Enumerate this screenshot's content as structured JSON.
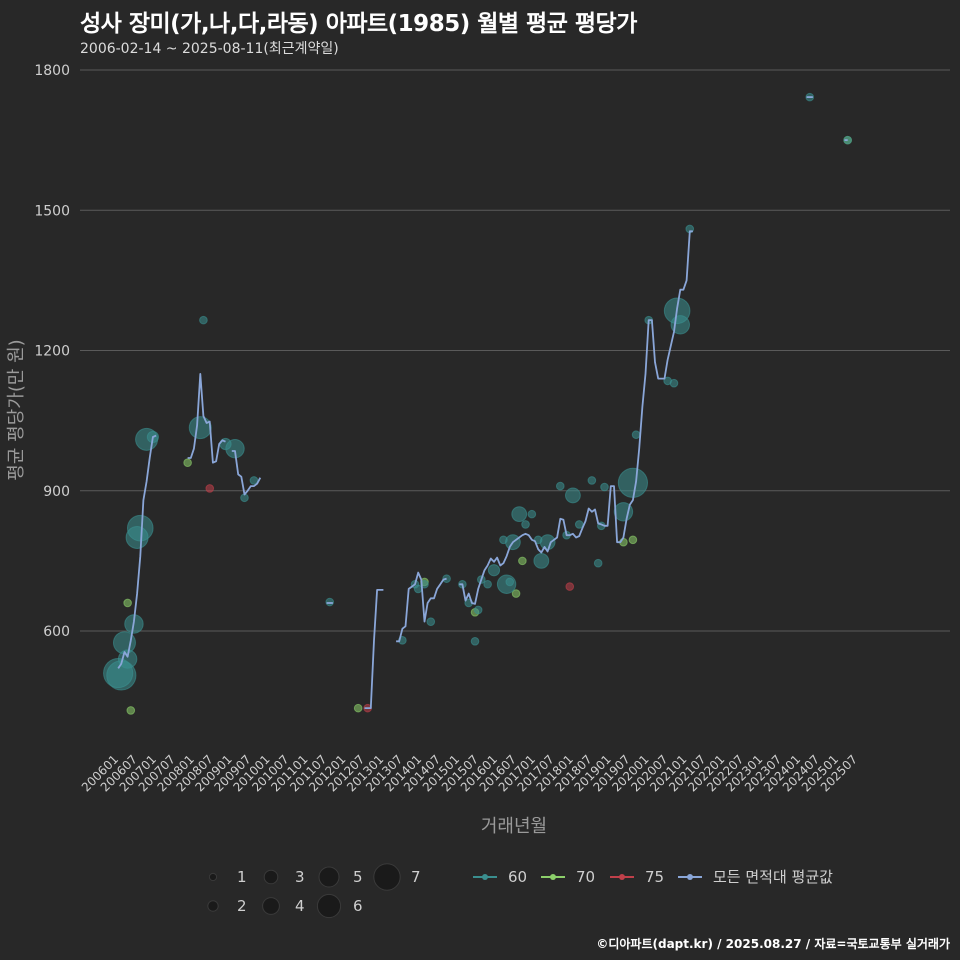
{
  "title": "성사 장미(가,나,다,라동) 아파트(1985) 월별 평균 평당가",
  "subtitle": "2006-02-14 ~ 2025-08-11(최근계약일)",
  "footer": "©디아파트(dapt.kr) / 2025.08.27 / 자료=국토교통부 실거래가",
  "colors": {
    "background": "#282828",
    "grid": "#5a5a5a",
    "s60": "#3a8f8f",
    "s70": "#8ccf6a",
    "s75": "#c0404a",
    "avg": "#8aa6d8"
  },
  "chart_data": {
    "type": "line",
    "title": "성사 장미(가,나,다,라동) 아파트(1985) 월별 평균 평당가",
    "xlabel": "거래년월",
    "ylabel": "평균 평당가(만 원)",
    "ylim": [
      370,
      1800
    ],
    "yticks": [
      600,
      900,
      1200,
      1500,
      1800
    ],
    "xticks": [
      "200601",
      "200607",
      "200701",
      "200707",
      "200801",
      "200807",
      "200901",
      "200907",
      "201001",
      "201007",
      "201101",
      "201107",
      "201201",
      "201207",
      "201301",
      "201307",
      "201401",
      "201407",
      "201501",
      "201507",
      "201601",
      "201607",
      "201701",
      "201707",
      "201801",
      "201807",
      "201901",
      "201907",
      "202001",
      "202007",
      "202101",
      "202107",
      "202201",
      "202207",
      "202301",
      "202307",
      "202401",
      "202407",
      "202501",
      "202507"
    ],
    "x_index_note": "x = months since 2006-01",
    "size_legend": [
      "1",
      "2",
      "3",
      "4",
      "5",
      "6",
      "7"
    ],
    "series_legend": [
      "60",
      "70",
      "75",
      "모든 면적대 평균값"
    ],
    "avg_segments": [
      [
        [
          2,
          520
        ],
        [
          3,
          530
        ],
        [
          4,
          555
        ],
        [
          5,
          545
        ],
        [
          6,
          580
        ],
        [
          7,
          620
        ],
        [
          8,
          680
        ],
        [
          9,
          760
        ],
        [
          10,
          880
        ],
        [
          11,
          920
        ],
        [
          12,
          970
        ],
        [
          13,
          1015
        ],
        [
          14,
          1018
        ]
      ],
      [
        [
          24,
          970
        ],
        [
          25,
          970
        ],
        [
          26,
          990
        ],
        [
          27,
          1040
        ],
        [
          28,
          1150
        ],
        [
          29,
          1060
        ],
        [
          30,
          1045
        ],
        [
          31,
          1048
        ],
        [
          32,
          960
        ],
        [
          33,
          963
        ],
        [
          34,
          1000
        ],
        [
          35,
          1008
        ],
        [
          36,
          1005
        ]
      ],
      [
        [
          38,
          985
        ],
        [
          39,
          985
        ],
        [
          40,
          935
        ],
        [
          41,
          930
        ],
        [
          42,
          892
        ],
        [
          43,
          900
        ],
        [
          44,
          910
        ],
        [
          45,
          910
        ],
        [
          46,
          915
        ],
        [
          47,
          928
        ]
      ],
      [
        [
          68,
          660
        ],
        [
          69,
          660
        ],
        [
          70,
          660
        ]
      ],
      [
        [
          80,
          435
        ],
        [
          81,
          435
        ],
        [
          82,
          435
        ],
        [
          83,
          580
        ],
        [
          84,
          688
        ],
        [
          85,
          688
        ],
        [
          86,
          688
        ]
      ],
      [
        [
          90,
          578
        ],
        [
          91,
          578
        ],
        [
          92,
          605
        ],
        [
          93,
          610
        ],
        [
          94,
          690
        ],
        [
          95,
          695
        ],
        [
          96,
          700
        ],
        [
          97,
          725
        ],
        [
          98,
          710
        ],
        [
          99,
          620
        ],
        [
          100,
          660
        ],
        [
          101,
          670
        ],
        [
          102,
          670
        ],
        [
          103,
          690
        ],
        [
          104,
          700
        ],
        [
          105,
          710
        ],
        [
          106,
          712
        ]
      ],
      [
        [
          110,
          700
        ],
        [
          111,
          700
        ],
        [
          112,
          665
        ],
        [
          113,
          680
        ],
        [
          114,
          660
        ],
        [
          115,
          658
        ],
        [
          116,
          690
        ],
        [
          117,
          710
        ],
        [
          118,
          730
        ],
        [
          119,
          740
        ],
        [
          120,
          755
        ],
        [
          121,
          748
        ],
        [
          122,
          757
        ],
        [
          123,
          740
        ],
        [
          124,
          745
        ],
        [
          125,
          760
        ],
        [
          126,
          780
        ],
        [
          127,
          790
        ],
        [
          128,
          795
        ],
        [
          129,
          800
        ],
        [
          130,
          805
        ],
        [
          131,
          808
        ],
        [
          132,
          805
        ],
        [
          133,
          795
        ],
        [
          134,
          792
        ],
        [
          135,
          775
        ],
        [
          136,
          768
        ],
        [
          137,
          780
        ],
        [
          138,
          770
        ],
        [
          139,
          790
        ],
        [
          140,
          795
        ],
        [
          141,
          800
        ],
        [
          142,
          840
        ],
        [
          143,
          838
        ],
        [
          144,
          805
        ],
        [
          145,
          805
        ],
        [
          146,
          808
        ],
        [
          147,
          800
        ],
        [
          148,
          803
        ],
        [
          149,
          820
        ],
        [
          150,
          835
        ],
        [
          151,
          862
        ],
        [
          152,
          855
        ],
        [
          153,
          860
        ],
        [
          154,
          830
        ],
        [
          155,
          828
        ],
        [
          156,
          825
        ],
        [
          157,
          825
        ],
        [
          158,
          910
        ],
        [
          159,
          910
        ],
        [
          160,
          790
        ],
        [
          161,
          790
        ],
        [
          162,
          800
        ],
        [
          163,
          840
        ],
        [
          164,
          870
        ],
        [
          165,
          880
        ],
        [
          166,
          920
        ],
        [
          167,
          990
        ],
        [
          168,
          1080
        ],
        [
          169,
          1150
        ],
        [
          170,
          1265
        ],
        [
          171,
          1265
        ],
        [
          172,
          1175
        ],
        [
          173,
          1140
        ],
        [
          174,
          1140
        ],
        [
          175,
          1140
        ],
        [
          176,
          1180
        ],
        [
          177,
          1210
        ],
        [
          178,
          1240
        ],
        [
          179,
          1290
        ],
        [
          180,
          1330
        ],
        [
          181,
          1330
        ],
        [
          182,
          1350
        ],
        [
          183,
          1455
        ],
        [
          184,
          1455
        ]
      ],
      [
        [
          220,
          1742
        ],
        [
          221,
          1742
        ],
        [
          222,
          1742
        ]
      ],
      [
        [
          232,
          1650
        ],
        [
          233,
          1650
        ]
      ]
    ],
    "points_60": [
      [
        2,
        510,
        7
      ],
      [
        3,
        505,
        7
      ],
      [
        4,
        575,
        5
      ],
      [
        5,
        540,
        4
      ],
      [
        7,
        615,
        4
      ],
      [
        8,
        800,
        5
      ],
      [
        9,
        820,
        6
      ],
      [
        11,
        1010,
        5
      ],
      [
        13,
        1015,
        2
      ],
      [
        28,
        1035,
        5
      ],
      [
        29,
        1265,
        1
      ],
      [
        36,
        1000,
        2
      ],
      [
        39,
        990,
        4
      ],
      [
        42,
        885,
        1
      ],
      [
        45,
        922,
        1
      ],
      [
        69,
        662,
        1
      ],
      [
        92,
        580,
        1
      ],
      [
        96,
        700,
        1
      ],
      [
        97,
        690,
        1
      ],
      [
        99,
        700,
        1
      ],
      [
        101,
        620,
        1
      ],
      [
        106,
        712,
        1
      ],
      [
        111,
        700,
        1
      ],
      [
        113,
        660,
        1
      ],
      [
        115,
        578,
        1
      ],
      [
        116,
        645,
        1
      ],
      [
        117,
        710,
        1
      ],
      [
        119,
        700,
        1
      ],
      [
        121,
        730,
        2
      ],
      [
        124,
        795,
        1
      ],
      [
        125,
        700,
        4
      ],
      [
        126,
        705,
        1
      ],
      [
        127,
        790,
        3
      ],
      [
        129,
        850,
        3
      ],
      [
        131,
        828,
        1
      ],
      [
        133,
        850,
        1
      ],
      [
        135,
        795,
        1
      ],
      [
        136,
        750,
        3
      ],
      [
        138,
        790,
        3
      ],
      [
        142,
        910,
        1
      ],
      [
        144,
        805,
        1
      ],
      [
        146,
        890,
        3
      ],
      [
        148,
        828,
        1
      ],
      [
        152,
        922,
        1
      ],
      [
        154,
        745,
        1
      ],
      [
        155,
        825,
        1
      ],
      [
        156,
        908,
        1
      ],
      [
        162,
        855,
        4
      ],
      [
        165,
        917,
        7
      ],
      [
        166,
        1020,
        1
      ],
      [
        170,
        1265,
        1
      ],
      [
        176,
        1135,
        1
      ],
      [
        178,
        1130,
        1
      ],
      [
        179,
        1285,
        6
      ],
      [
        180,
        1255,
        4
      ],
      [
        183,
        1460,
        1
      ],
      [
        221,
        1742,
        1
      ],
      [
        233,
        1650,
        1
      ]
    ],
    "points_70": [
      [
        5,
        660,
        1
      ],
      [
        6,
        430,
        1
      ],
      [
        24,
        960,
        1
      ],
      [
        78,
        435,
        1
      ],
      [
        99,
        705,
        1
      ],
      [
        115,
        640,
        1
      ],
      [
        128,
        680,
        1
      ],
      [
        130,
        750,
        1
      ],
      [
        162,
        790,
        1
      ],
      [
        165,
        795,
        1
      ],
      [
        233,
        1650,
        1
      ]
    ],
    "points_75": [
      [
        31,
        905,
        1
      ],
      [
        81,
        435,
        1
      ],
      [
        145,
        695,
        1
      ]
    ]
  }
}
